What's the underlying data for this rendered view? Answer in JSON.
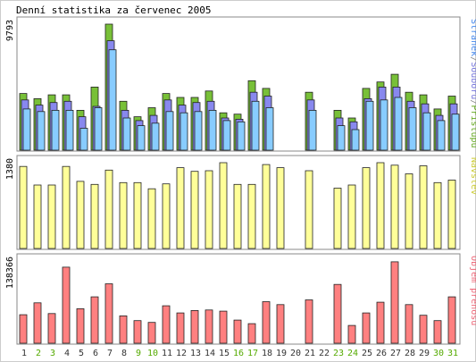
{
  "chart_data": {
    "title": "Denní statistika za červenec 2005",
    "type": "bar",
    "categories": [
      "1",
      "2",
      "3",
      "4",
      "5",
      "6",
      "7",
      "8",
      "9",
      "10",
      "11",
      "12",
      "13",
      "14",
      "15",
      "16",
      "17",
      "18",
      "19",
      "20",
      "21",
      "22",
      "23",
      "24",
      "25",
      "26",
      "27",
      "28",
      "29",
      "30",
      "31"
    ],
    "weekend_days": [
      "2",
      "3",
      "9",
      "10",
      "16",
      "17",
      "23",
      "24",
      "30",
      "31"
    ],
    "panels": [
      {
        "id": "hits",
        "ymax_label": "9793",
        "ymax": 9793,
        "legend": [
          {
            "text": "Stránek",
            "color": "#4488ee"
          },
          {
            "text": "/",
            "color": "#888888"
          },
          {
            "text": "Souborů",
            "color": "#7777dd"
          },
          {
            "text": "/",
            "color": "#888888"
          },
          {
            "text": "Přístupů",
            "color": "#66aa22"
          }
        ],
        "series": [
          {
            "name": "Přístupů",
            "color": "#78c038",
            "values": [
              4400,
              4000,
              4300,
              4300,
              3100,
              4900,
              9793,
              3800,
              2600,
              3300,
              4400,
              4100,
              4100,
              4600,
              2900,
              2800,
              5400,
              4800,
              null,
              null,
              4500,
              null,
              3100,
              2500,
              4800,
              5300,
              5900,
              4500,
              4300,
              3200,
              4200
            ]
          },
          {
            "name": "Souborů",
            "color": "#8888ee",
            "values": [
              3900,
              3500,
              3700,
              3800,
              2600,
              3400,
              8500,
              3100,
              2300,
              2700,
              3900,
              3500,
              3700,
              3800,
              2500,
              2400,
              4500,
              4200,
              null,
              null,
              3900,
              null,
              2500,
              2200,
              4000,
              4900,
              4900,
              3800,
              3600,
              2700,
              3600
            ]
          },
          {
            "name": "Stránek",
            "color": "#88ccff",
            "values": [
              3200,
              3000,
              3100,
              3100,
              1700,
              3300,
              7800,
              2500,
              1900,
              2100,
              3000,
              2900,
              3000,
              3100,
              2300,
              2200,
              3800,
              3300,
              null,
              null,
              3100,
              null,
              1900,
              1600,
              3800,
              3900,
              4100,
              3300,
              2900,
              2300,
              2800
            ]
          }
        ]
      },
      {
        "id": "visits",
        "ymax_label": "1380",
        "ymax": 1380,
        "legend": [
          {
            "text": "Návštěv",
            "color": "#cccc33"
          }
        ],
        "series": [
          {
            "name": "Návštěv",
            "color": "#ffff99",
            "values": [
              1320,
              1020,
              1020,
              1320,
              1080,
              1030,
              1260,
              1060,
              1060,
              960,
              1040,
              1300,
              1240,
              1250,
              1380,
              1030,
              1030,
              1350,
              1300,
              null,
              1250,
              null,
              970,
              1020,
              1300,
              1380,
              1340,
              1200,
              1330,
              1060,
              1100
            ]
          }
        ]
      },
      {
        "id": "transfer",
        "ymax_label": "138366",
        "ymax": 138366,
        "legend": [
          {
            "text": "Objem přenosu",
            "color": "#ee6677"
          }
        ],
        "series": [
          {
            "name": "Objem přenosu",
            "color": "#ff8080",
            "values": [
              48000,
              68000,
              50000,
              128000,
              58000,
              78000,
              100000,
              46000,
              38000,
              35000,
              63000,
              51000,
              55000,
              56000,
              54000,
              39000,
              33000,
              70000,
              65000,
              null,
              73000,
              null,
              99000,
              30000,
              51000,
              69000,
              137000,
              65000,
              47000,
              38000,
              78000
            ]
          }
        ]
      }
    ]
  },
  "colors": {
    "frame": "#888888",
    "weekday_label": "#333333",
    "weekend_label": "#55aa00"
  }
}
